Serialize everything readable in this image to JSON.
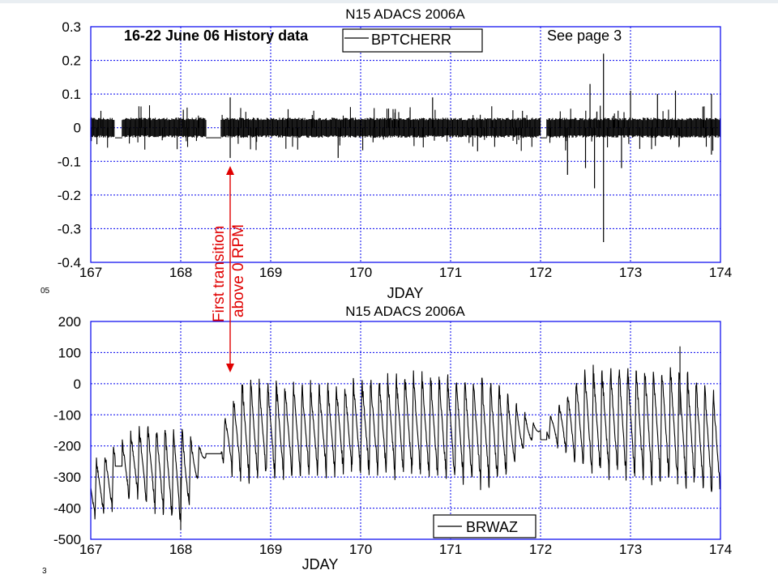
{
  "chart_data": [
    {
      "type": "line",
      "title": "N15 ADACS 2006A",
      "xlabel": "JDAY",
      "ylabel": "",
      "xlim": [
        167,
        174
      ],
      "ylim": [
        -0.4,
        0.3
      ],
      "xticks": [
        "167",
        "168",
        "169",
        "170",
        "171",
        "172",
        "173",
        "174"
      ],
      "yticks": [
        "0.3",
        "0.2",
        "0.1",
        "0",
        "-0.1",
        "-0.2",
        "-0.3",
        "-0.4"
      ],
      "grid": true,
      "legend": {
        "position": "top-center",
        "entries": [
          "BPTCHERR"
        ]
      },
      "annotations": [
        "16-22 June 06 History data",
        "See page 3"
      ],
      "series": [
        {
          "name": "BPTCHERR",
          "noise_band": [
            -0.03,
            0.03
          ],
          "segments": [
            [
              167.0,
              167.27
            ],
            [
              167.35,
              168.28
            ],
            [
              168.45,
              172.0
            ],
            [
              172.07,
              174.0
            ]
          ],
          "gaps": [
            [
              167.27,
              167.35
            ],
            [
              168.28,
              168.45
            ],
            [
              172.0,
              172.07
            ]
          ],
          "spikes": [
            [
              168.55,
              0.09
            ],
            [
              168.55,
              -0.09
            ],
            [
              169.75,
              -0.09
            ],
            [
              170.8,
              0.09
            ],
            [
              171.3,
              -0.07
            ],
            [
              172.3,
              -0.14
            ],
            [
              172.5,
              -0.12
            ],
            [
              172.55,
              0.13
            ],
            [
              172.6,
              -0.18
            ],
            [
              172.7,
              0.22
            ],
            [
              172.7,
              -0.34
            ],
            [
              172.9,
              -0.12
            ],
            [
              173.0,
              0.11
            ],
            [
              173.3,
              0.1
            ],
            [
              173.5,
              0.11
            ],
            [
              173.9,
              0.1
            ],
            [
              173.9,
              -0.08
            ]
          ]
        }
      ]
    },
    {
      "type": "line",
      "title": "N15 ADACS 2006A",
      "xlabel": "JDAY",
      "ylabel": "",
      "xlim": [
        167,
        174
      ],
      "ylim": [
        -500,
        200
      ],
      "xticks": [
        "167",
        "168",
        "169",
        "170",
        "171",
        "172",
        "173",
        "174"
      ],
      "yticks": [
        "200",
        "100",
        "0",
        "-100",
        "-200",
        "-300",
        "-400",
        "-500"
      ],
      "grid": true,
      "legend": {
        "position": "bottom-right",
        "entries": [
          "BRWAZ"
        ]
      },
      "series": [
        {
          "name": "BRWAZ",
          "cycles_per_day": 10.5,
          "envelope": [
            [
              167.0,
              -350,
              180
            ],
            [
              167.5,
              -250,
              220
            ],
            [
              168.0,
              -300,
              320
            ],
            [
              168.3,
              -220,
              0
            ],
            [
              168.7,
              -150,
              330
            ],
            [
              169.5,
              -150,
              280
            ],
            [
              170.5,
              -130,
              320
            ],
            [
              171.5,
              -160,
              340
            ],
            [
              172.0,
              -150,
              0
            ],
            [
              172.5,
              -120,
              340
            ],
            [
              173.5,
              -130,
              380
            ],
            [
              174.0,
              -200,
              320
            ]
          ],
          "flat_segments": [
            [
              167.27,
              167.35,
              -265
            ],
            [
              168.28,
              168.45,
              -225
            ],
            [
              172.0,
              172.07,
              -180
            ]
          ],
          "min_point": [
            168.0,
            -470
          ],
          "max_point": [
            173.55,
            120
          ]
        }
      ]
    }
  ],
  "annotation_arrow": {
    "label_line1": "First transition",
    "label_line2": "above 0 RPM",
    "x_day": 168.55,
    "color": "#e00000"
  },
  "edge_fragments": {
    "mid_left": "05",
    "bottom_left": "3"
  }
}
